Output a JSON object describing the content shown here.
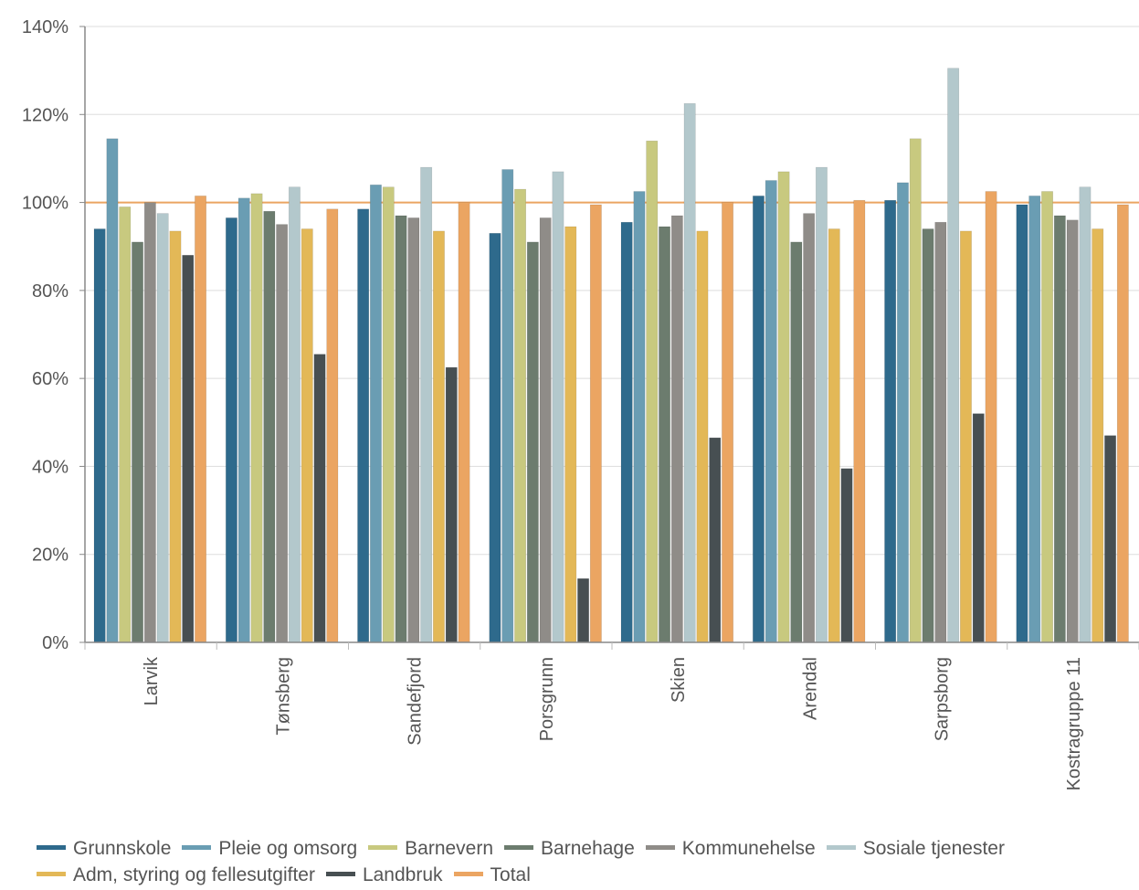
{
  "chart_data": {
    "type": "bar",
    "categories": [
      "Larvik",
      "Tønsberg",
      "Sandefjord",
      "Porsgrunn",
      "Skien",
      "Arendal",
      "Sarpsborg",
      "Kostragruppe 11"
    ],
    "ylim": [
      0,
      140
    ],
    "yticks": [
      "0%",
      "20%",
      "40%",
      "60%",
      "80%",
      "100%",
      "120%",
      "140%"
    ],
    "reference_line": 100,
    "grid": true,
    "legend_position": "bottom",
    "series": [
      {
        "name": "Grunnskole",
        "color": "#2e6a8c",
        "values": [
          94,
          96.5,
          98.5,
          93,
          95.5,
          101.5,
          100.5,
          99.5
        ]
      },
      {
        "name": "Pleie og omsorg",
        "color": "#6a9db3",
        "values": [
          114.5,
          101,
          104,
          107.5,
          102.5,
          105,
          104.5,
          101.5
        ]
      },
      {
        "name": "Barnevern",
        "color": "#c8c97f",
        "values": [
          99,
          102,
          103.5,
          103,
          114,
          107,
          114.5,
          102.5
        ]
      },
      {
        "name": "Barnehage",
        "color": "#6c7c6e",
        "values": [
          91,
          98,
          97,
          91,
          94.5,
          91,
          94,
          97
        ]
      },
      {
        "name": "Kommunehelse",
        "color": "#8f8c88",
        "values": [
          100,
          95,
          96.5,
          96.5,
          97,
          97.5,
          95.5,
          96
        ]
      },
      {
        "name": "Sosiale tjenester",
        "color": "#b3c8cc",
        "values": [
          97.5,
          103.5,
          108,
          107,
          122.5,
          108,
          130.5,
          103.5
        ]
      },
      {
        "name": "Adm, styring og fellesutgifter",
        "color": "#e3b857",
        "values": [
          93.5,
          94,
          93.5,
          94.5,
          93.5,
          94,
          93.5,
          94
        ]
      },
      {
        "name": "Landbruk",
        "color": "#474f52",
        "values": [
          88,
          65.5,
          62.5,
          14.5,
          46.5,
          39.5,
          52,
          47
        ]
      },
      {
        "name": "Total",
        "color": "#eba562",
        "values": [
          101.5,
          98.5,
          100,
          99.5,
          100,
          100.5,
          102.5,
          99.5
        ]
      }
    ]
  }
}
